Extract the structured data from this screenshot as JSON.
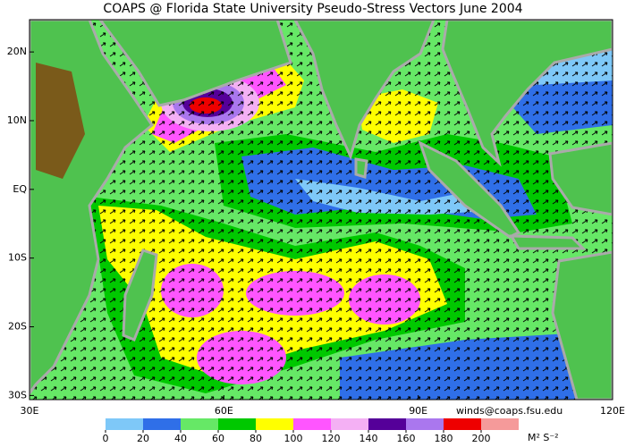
{
  "title": "COAPS @ Florida State University Pseudo-Stress Vectors June 2004",
  "map": {
    "lonlim": [
      30,
      120
    ],
    "latlim": [
      -30.6,
      24.7
    ],
    "lon_ticks": [
      {
        "value": 30,
        "label": "30E"
      },
      {
        "value": 60,
        "label": "60E"
      },
      {
        "value": 90,
        "label": "90E"
      },
      {
        "value": 120,
        "label": "120E"
      }
    ],
    "lat_ticks": [
      {
        "value": 20,
        "label": "20N"
      },
      {
        "value": 10,
        "label": "10N"
      },
      {
        "value": 0,
        "label": "EQ"
      },
      {
        "value": -10,
        "label": "10S"
      },
      {
        "value": -20,
        "label": "20S"
      },
      {
        "value": -30,
        "label": "30S"
      }
    ]
  },
  "colorbar": {
    "ticks": [
      0,
      20,
      40,
      60,
      80,
      100,
      120,
      140,
      160,
      180,
      200
    ],
    "colors": [
      "#7ec8f8",
      "#2f6fe8",
      "#66e866",
      "#00c800",
      "#ffff00",
      "#ff55ff",
      "#f4b0f4",
      "#550099",
      "#aa77ee",
      "#ee0000",
      "#f59a9a"
    ],
    "unit": "M² S⁻²"
  },
  "credit": "winds@coaps.fsu.edu"
}
